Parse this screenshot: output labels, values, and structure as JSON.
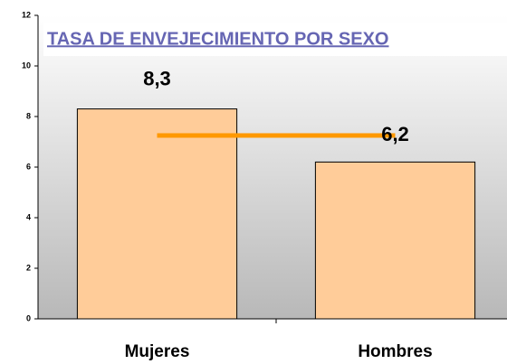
{
  "chart_data": {
    "type": "bar",
    "title": "TASA DE ENVEJECIMIENTO POR SEXO",
    "categories": [
      "Mujeres",
      "Hombres"
    ],
    "values": [
      8.3,
      6.2
    ],
    "value_labels": [
      "8,3",
      "6,2"
    ],
    "color": "#ffcc99",
    "series": [
      {
        "color": "#ff9900",
        "values": [
          7.25,
          7.25
        ]
      }
    ],
    "ylim": [
      0,
      12
    ],
    "yticks": [
      0,
      2,
      4,
      6,
      8,
      10,
      12
    ]
  }
}
